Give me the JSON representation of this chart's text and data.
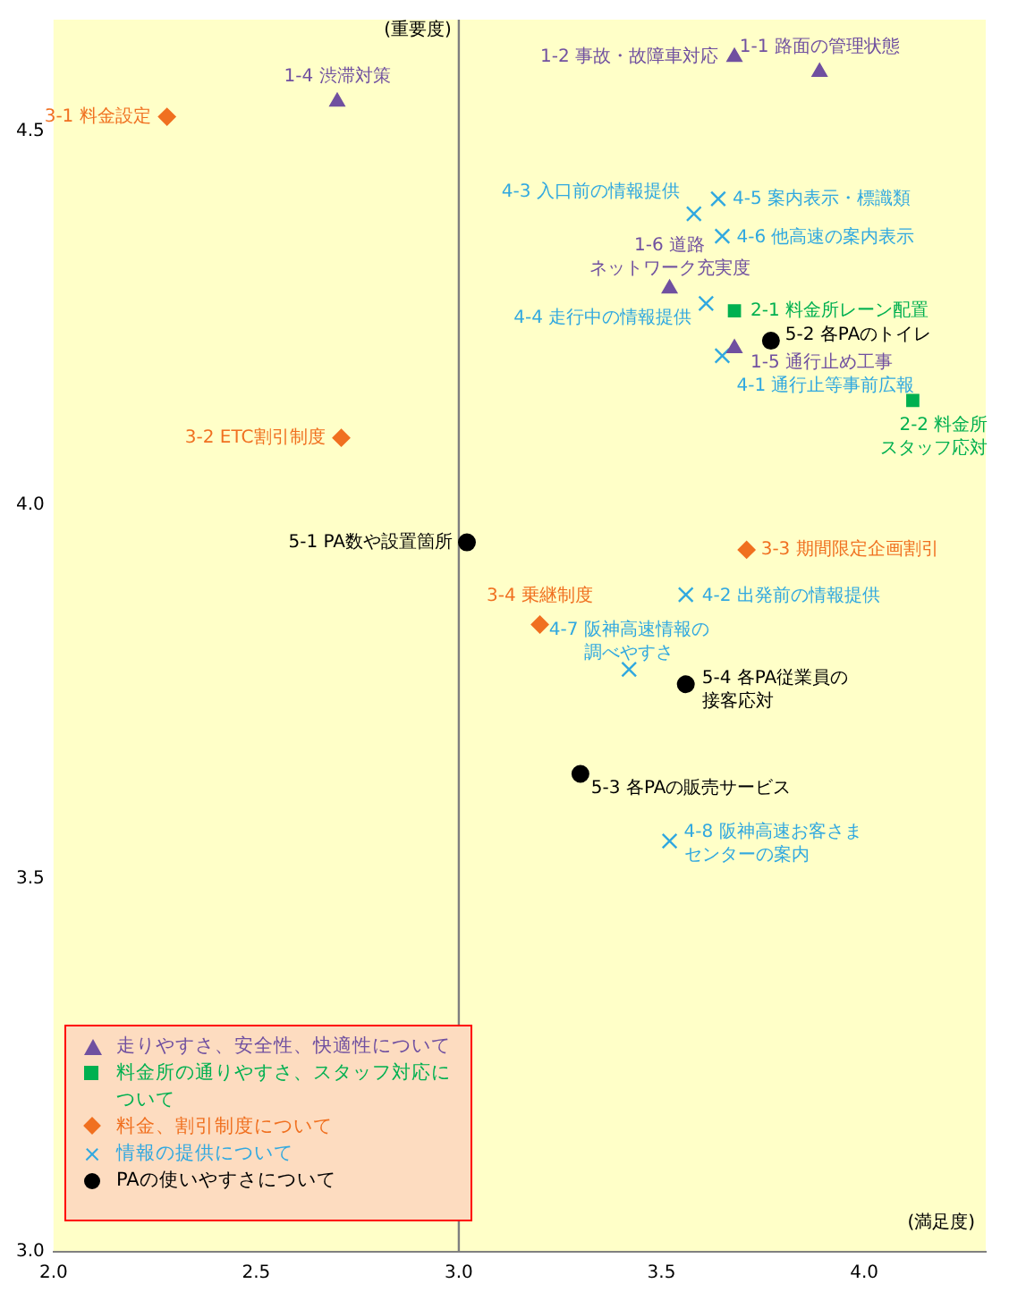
{
  "chart_data": {
    "type": "scatter",
    "xlabel": "(満足度)",
    "ylabel": "(重要度)",
    "xlim": [
      2.0,
      4.3
    ],
    "ylim": [
      3.0,
      4.65
    ],
    "xticks": [
      {
        "value": 2,
        "label": "2.0"
      },
      {
        "value": 2.5,
        "label": "2.5"
      },
      {
        "value": 3,
        "label": "3.0"
      },
      {
        "value": 3.5,
        "label": "3.5"
      },
      {
        "value": 4,
        "label": "4.0"
      }
    ],
    "yticks": [
      {
        "value": 3,
        "label": "3.0"
      },
      {
        "value": 3.5,
        "label": "3.5"
      },
      {
        "value": 4,
        "label": "4.0"
      },
      {
        "value": 4.5,
        "label": "4.5"
      }
    ],
    "grid": false,
    "legend": "bottom left",
    "ref_lines": [
      {
        "axis": "x",
        "value": 3.0
      }
    ],
    "series": [
      {
        "name": "走りやすさ、安全性、快適性について",
        "color": "#7050a0",
        "marker": "triangle",
        "x": [
          3.89,
          3.68,
          2.7,
          3.68,
          3.52
        ],
        "values": [
          4.58,
          4.6,
          4.54,
          4.21,
          4.29
        ]
      },
      {
        "name": "料金所の通りやすさ、スタッフ対応について",
        "color": "#00b050",
        "marker": "square",
        "x": [
          3.68,
          4.12
        ],
        "values": [
          4.26,
          4.14
        ]
      },
      {
        "name": "料金、割引制度について",
        "color": "#f07020",
        "marker": "diamond",
        "x": [
          2.28,
          2.71,
          3.71,
          3.2
        ],
        "values": [
          4.52,
          4.09,
          3.94,
          3.84
        ]
      },
      {
        "name": "情報の提供について",
        "color": "#30a8e0",
        "marker": "cross",
        "x": [
          3.65,
          3.56,
          3.58,
          3.61,
          3.64,
          3.65,
          3.42,
          3.52
        ],
        "values": [
          4.2,
          3.88,
          4.39,
          4.27,
          4.41,
          4.36,
          3.78,
          3.55
        ]
      },
      {
        "name": "PAの使いやすさについて",
        "color": "#000000",
        "marker": "circle",
        "x": [
          3.02,
          3.77,
          3.3,
          3.56
        ],
        "values": [
          3.95,
          4.22,
          3.64,
          3.76
        ]
      }
    ],
    "annotations": [
      {
        "text": "1-1 路面の管理状態",
        "x": 3.89,
        "y": 4.58
      },
      {
        "text": "1-2 事故・故障車対応",
        "x": 3.68,
        "y": 4.6
      },
      {
        "text": "1-4 渋滞対策",
        "x": 2.7,
        "y": 4.54
      },
      {
        "text": "1-5 通行止め工事",
        "x": 3.68,
        "y": 4.21
      },
      {
        "text": "1-6 道路ネットワーク充実度",
        "x": 3.52,
        "y": 4.29
      },
      {
        "text": "2-1 料金所レーン配置",
        "x": 3.68,
        "y": 4.26
      },
      {
        "text": "2-2 料金所スタッフ応対",
        "x": 4.12,
        "y": 4.14
      },
      {
        "text": "3-1 料金設定",
        "x": 2.28,
        "y": 4.52
      },
      {
        "text": "3-2 ETC割引制度",
        "x": 2.71,
        "y": 4.09
      },
      {
        "text": "3-3 期間限定企画割引",
        "x": 3.71,
        "y": 3.94
      },
      {
        "text": "3-4 乗継制度",
        "x": 3.2,
        "y": 3.84
      },
      {
        "text": "4-1 通行止等事前広報",
        "x": 3.65,
        "y": 4.2
      },
      {
        "text": "4-2 出発前の情報提供",
        "x": 3.56,
        "y": 3.88
      },
      {
        "text": "4-3 入口前の情報提供",
        "x": 3.58,
        "y": 4.39
      },
      {
        "text": "4-4 走行中の情報提供",
        "x": 3.61,
        "y": 4.27
      },
      {
        "text": "4-5 案内表示・標識類",
        "x": 3.64,
        "y": 4.41
      },
      {
        "text": "4-6 他高速の案内表示",
        "x": 3.65,
        "y": 4.36
      },
      {
        "text": "4-7 阪神高速情報の調べやすさ",
        "x": 3.42,
        "y": 3.78
      },
      {
        "text": "4-8 阪神高速お客さまセンターの案内",
        "x": 3.52,
        "y": 3.55
      },
      {
        "text": "5-1 PA数や設置箇所",
        "x": 3.02,
        "y": 3.95
      },
      {
        "text": "5-2 各PAのトイレ",
        "x": 3.77,
        "y": 4.22
      },
      {
        "text": "5-3 各PAの販売サービス",
        "x": 3.3,
        "y": 3.64
      },
      {
        "text": "5-4 各PA従業員の接客応対",
        "x": 3.56,
        "y": 3.76
      }
    ]
  }
}
